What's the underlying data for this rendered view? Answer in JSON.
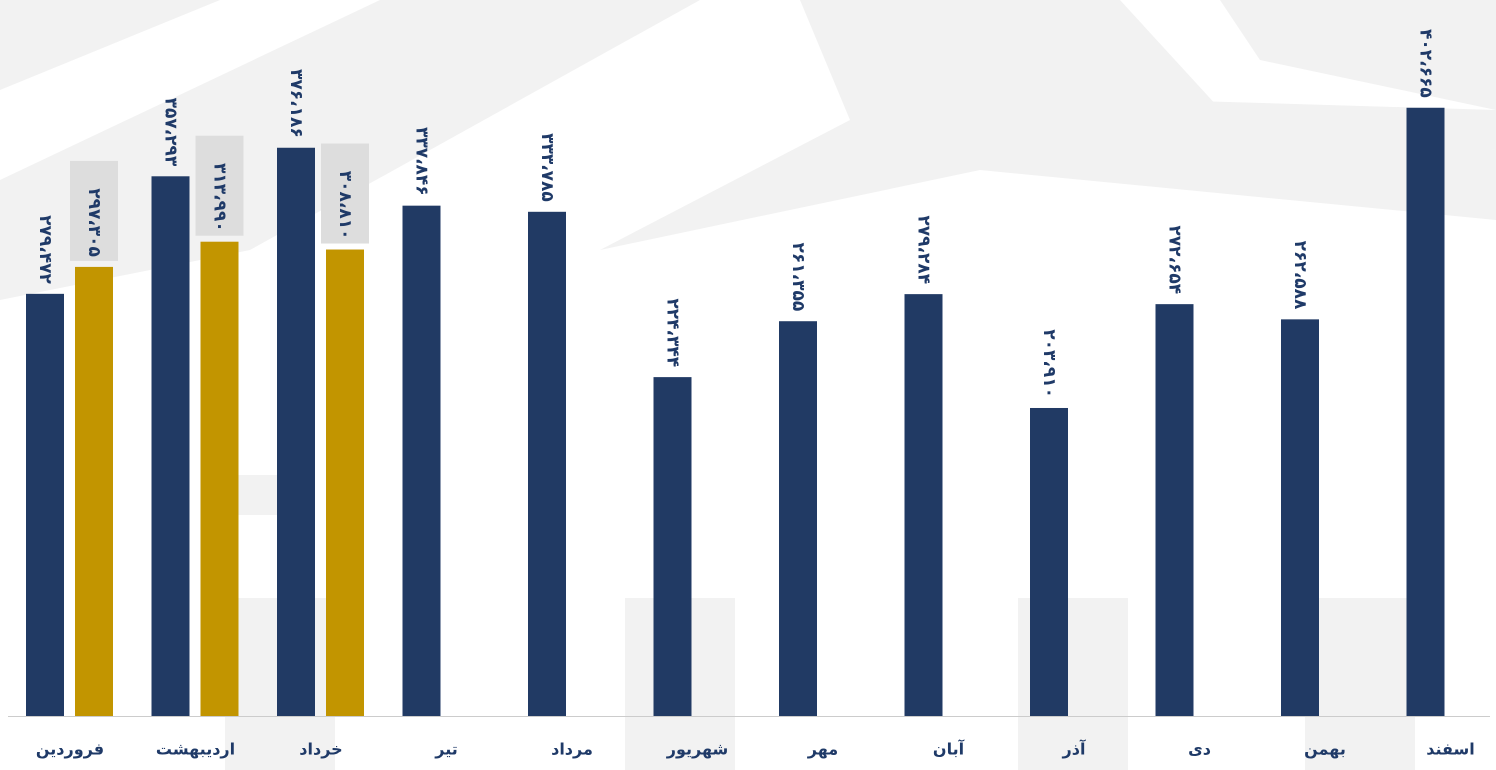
{
  "chart_data": {
    "type": "bar",
    "categories": [
      "فروردین",
      "اردیبهشت",
      "خرداد",
      "تیر",
      "مرداد",
      "شهریور",
      "مهر",
      "آبان",
      "آذر",
      "دی",
      "بهمن",
      "اسفند"
    ],
    "series": [
      {
        "color": "#213a64",
        "values": [
          279472,
          357293,
          376186,
          337846,
          333785,
          224344,
          261355,
          279284,
          203910,
          272654,
          262588,
          402665
        ],
        "value_labels": [
          "۲۷۹،۴۷۲",
          "۳۵۷،۲۹۳",
          "۳۷۶،۱۸۶",
          "۳۳۷،۸۴۶",
          "۳۳۳،۷۸۵",
          "۲۲۴،۳۴۴",
          "۲۶۱،۳۵۵",
          "۲۷۹،۲۸۴",
          "۲۰۳،۹۱۰",
          "۲۷۲،۶۵۴",
          "۲۶۲،۵۸۸",
          "۴۰۲،۶۶۵"
        ]
      },
      {
        "color": "#c29500",
        "values": [
          297305,
          313990,
          308810,
          null,
          null,
          null,
          null,
          null,
          null,
          null,
          null,
          null
        ],
        "value_labels": [
          "۲۹۷،۳۰۵",
          "۳۱۳،۹۹۰",
          "۳۰۸،۸۱۰",
          null,
          null,
          null,
          null,
          null,
          null,
          null,
          null,
          null
        ]
      }
    ],
    "ylim": [
      0,
      474000
    ]
  }
}
